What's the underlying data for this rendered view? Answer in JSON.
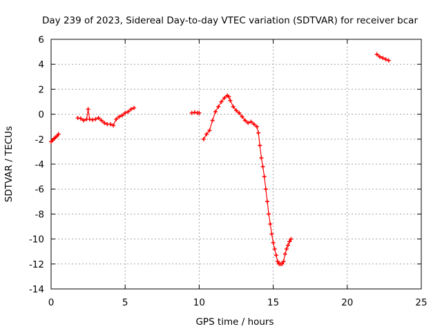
{
  "chart_data": {
    "type": "scatter",
    "title": "Day 239 of 2023, Sidereal Day-to-day VTEC variation (SDTVAR) for receiver bcar",
    "xlabel": "GPS time / hours",
    "ylabel": "SDTVAR / TECUs",
    "xlim": [
      0,
      25
    ],
    "ylim": [
      -14,
      6
    ],
    "xticks": [
      0,
      5,
      10,
      15,
      20,
      25
    ],
    "yticks": [
      -14,
      -12,
      -10,
      -8,
      -6,
      -4,
      -2,
      0,
      2,
      4,
      6
    ],
    "xtick_labels": [
      "0",
      "5",
      "10",
      "15",
      "20",
      "25"
    ],
    "ytick_labels": [
      "-14",
      "-12",
      "-10",
      "-8",
      "-6",
      "-4",
      "-2",
      "0",
      "2",
      "4",
      "6"
    ],
    "grid": true,
    "marker": "+",
    "color": "#ff0000",
    "series": [
      {
        "name": "segment-1",
        "x": [
          0.0,
          0.1,
          0.2,
          0.3,
          0.4,
          0.5
        ],
        "y": [
          -2.2,
          -2.1,
          -1.95,
          -1.85,
          -1.75,
          -1.6
        ]
      },
      {
        "name": "segment-2",
        "x": [
          1.8,
          2.0,
          2.2,
          2.4,
          2.5,
          2.6,
          2.8,
          3.0,
          3.2,
          3.4,
          3.6,
          3.8,
          4.0,
          4.2,
          4.4,
          4.6,
          4.8,
          5.0,
          5.2,
          5.4,
          5.6
        ],
        "y": [
          -0.3,
          -0.35,
          -0.5,
          -0.4,
          0.4,
          -0.4,
          -0.45,
          -0.4,
          -0.3,
          -0.5,
          -0.7,
          -0.8,
          -0.8,
          -0.9,
          -0.4,
          -0.2,
          -0.1,
          0.1,
          0.2,
          0.4,
          0.5
        ]
      },
      {
        "name": "segment-3",
        "x": [
          9.5,
          9.7,
          9.9,
          10.0
        ],
        "y": [
          0.1,
          0.15,
          0.1,
          0.1
        ]
      },
      {
        "name": "segment-4",
        "x": [
          10.3,
          10.5,
          10.7,
          10.9,
          11.1,
          11.3,
          11.5,
          11.7,
          11.9,
          12.0,
          12.1,
          12.3,
          12.5,
          12.7,
          12.9,
          13.1,
          13.3,
          13.5,
          13.7,
          13.9,
          14.0,
          14.1,
          14.2,
          14.3,
          14.4,
          14.5,
          14.6,
          14.7,
          14.8,
          14.9,
          15.0,
          15.1,
          15.2,
          15.3,
          15.4,
          15.5,
          15.6,
          15.7,
          15.8,
          15.9,
          16.0,
          16.1,
          16.2
        ],
        "y": [
          -2.0,
          -1.6,
          -1.3,
          -0.5,
          0.2,
          0.6,
          1.0,
          1.3,
          1.5,
          1.4,
          1.1,
          0.6,
          0.3,
          0.1,
          -0.2,
          -0.5,
          -0.7,
          -0.6,
          -0.8,
          -1.0,
          -1.5,
          -2.5,
          -3.5,
          -4.2,
          -5.0,
          -6.0,
          -7.0,
          -8.0,
          -8.8,
          -9.6,
          -10.3,
          -10.8,
          -11.3,
          -11.8,
          -12.0,
          -12.0,
          -12.0,
          -11.8,
          -11.2,
          -10.8,
          -10.5,
          -10.2,
          -10.0
        ]
      },
      {
        "name": "segment-5",
        "x": [
          22.0,
          22.2,
          22.4,
          22.6,
          22.8
        ],
        "y": [
          4.8,
          4.6,
          4.5,
          4.4,
          4.3
        ]
      }
    ]
  }
}
